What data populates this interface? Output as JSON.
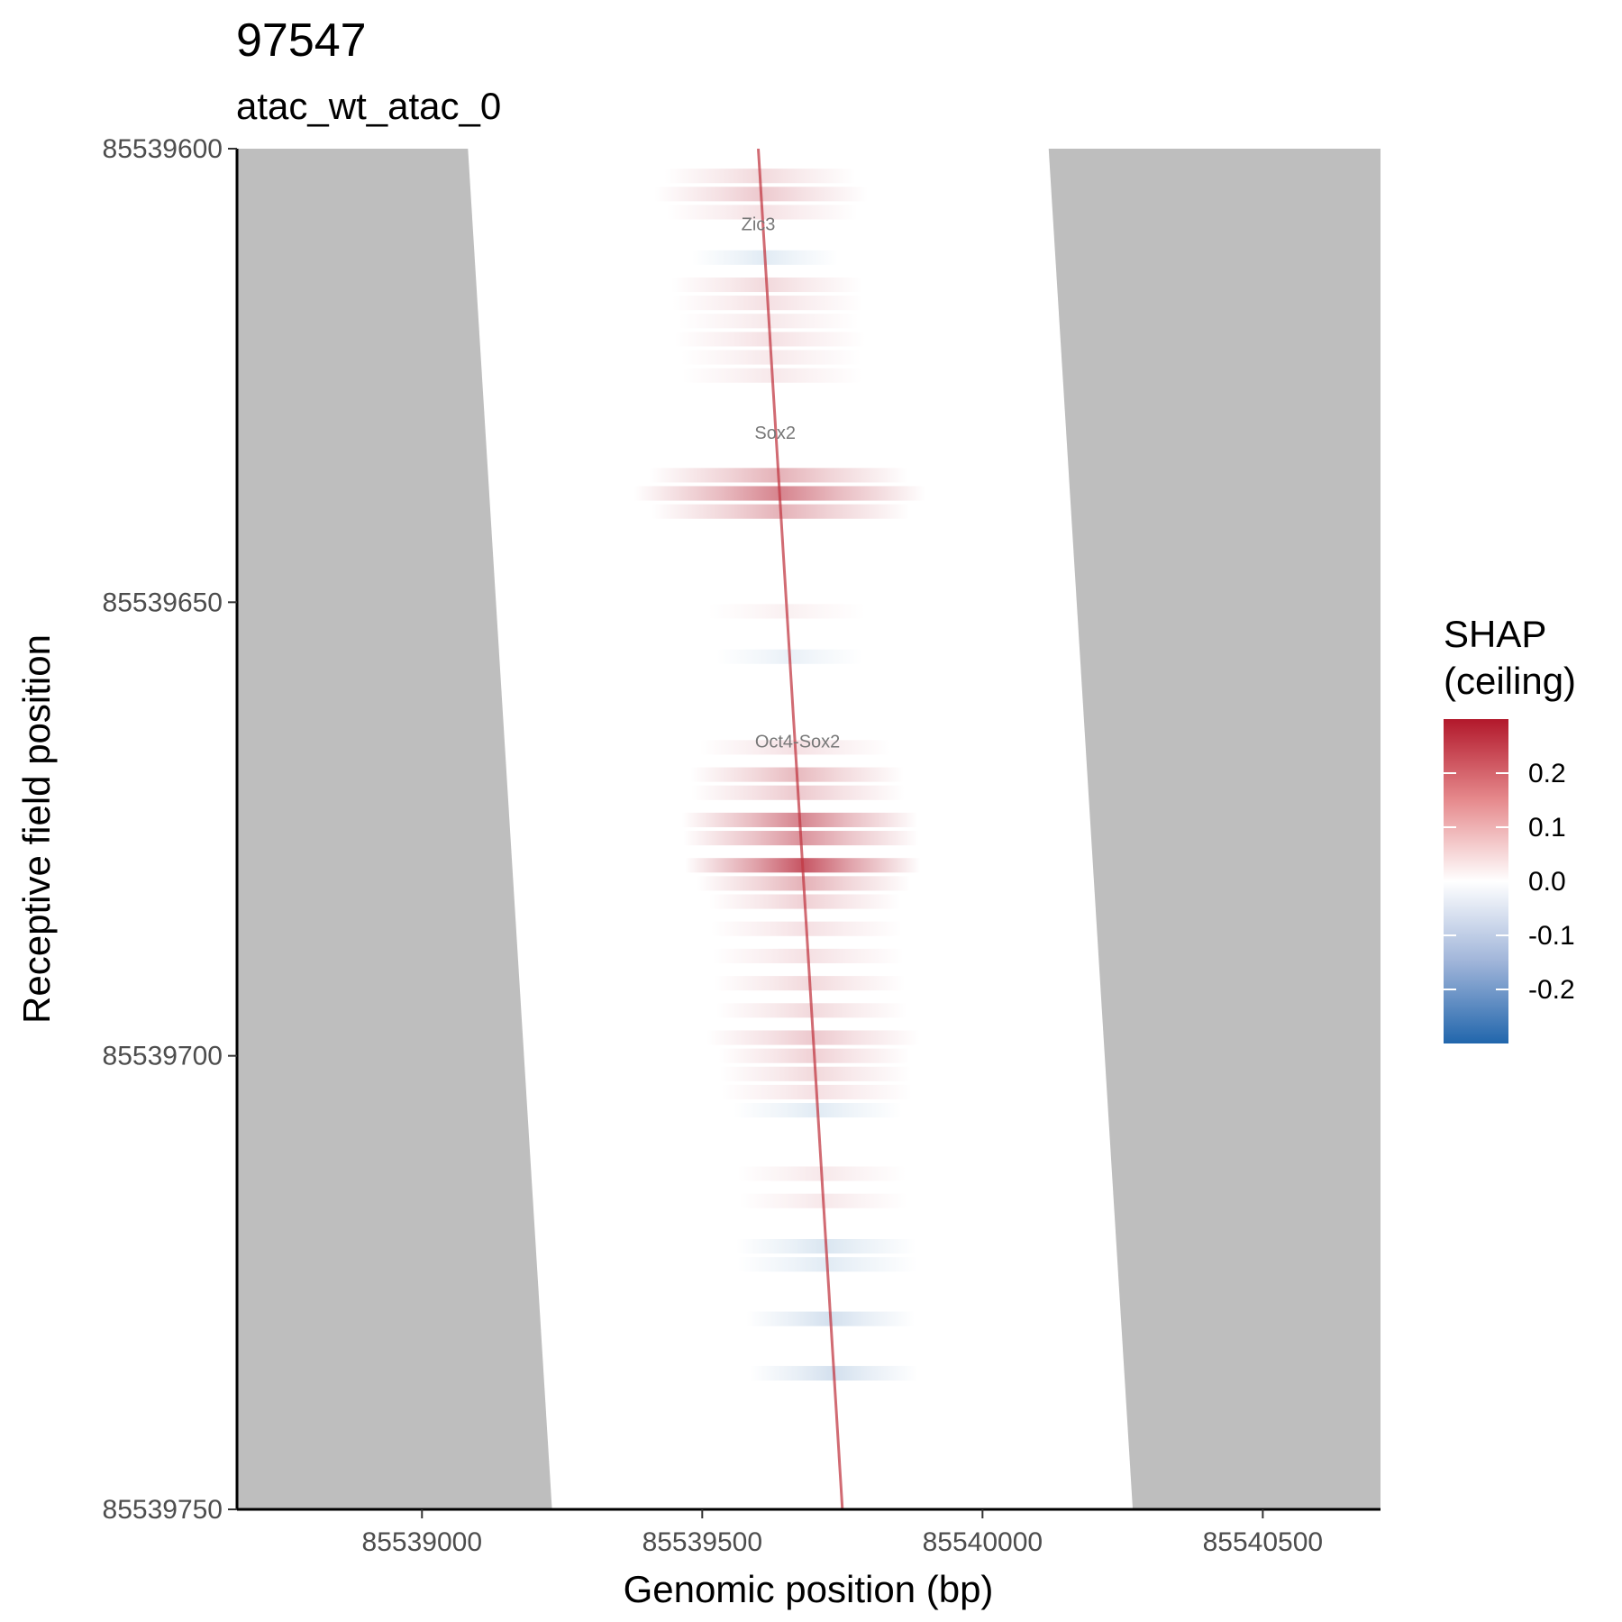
{
  "chart_data": {
    "type": "heatmap",
    "title": "97547",
    "subtitle": "atac_wt_atac_0",
    "xlabel": "Genomic position (bp)",
    "ylabel": "Receptive field position",
    "xlim": [
      85538670,
      85540710
    ],
    "ylim": [
      85539600,
      85539750
    ],
    "y_reversed": true,
    "x_ticks": [
      85539000,
      85539500,
      85540000,
      85540500
    ],
    "x_tick_labels": [
      "85539000",
      "85539500",
      "85540000",
      "85540500"
    ],
    "y_ticks": [
      85539600,
      85539650,
      85539700,
      85539750
    ],
    "y_tick_labels": [
      "85539600",
      "85539650",
      "85539700",
      "85539750"
    ],
    "background_fill": "#bebebe",
    "receptive_field_window": {
      "top": {
        "y": 85539600,
        "x_start": 85539082,
        "x_end": 85540118
      },
      "bottom": {
        "y": 85539750,
        "x_start": 85539232,
        "x_end": 85540268
      }
    },
    "diagonal_center": {
      "top": {
        "y": 85539600,
        "x": 85539600
      },
      "bottom": {
        "y": 85539750,
        "x": 85539750
      }
    },
    "bands": [
      {
        "y": 85539603,
        "value": 0.05,
        "halfwidth": 170
      },
      {
        "y": 85539605,
        "value": 0.07,
        "halfwidth": 190
      },
      {
        "y": 85539607,
        "value": 0.04,
        "halfwidth": 170
      },
      {
        "y": 85539612,
        "value": -0.04,
        "halfwidth": 130
      },
      {
        "y": 85539615,
        "value": 0.05,
        "halfwidth": 170
      },
      {
        "y": 85539617,
        "value": 0.04,
        "halfwidth": 170
      },
      {
        "y": 85539619,
        "value": 0.03,
        "halfwidth": 160
      },
      {
        "y": 85539621,
        "value": 0.04,
        "halfwidth": 170
      },
      {
        "y": 85539623,
        "value": 0.03,
        "halfwidth": 160
      },
      {
        "y": 85539625,
        "value": 0.03,
        "halfwidth": 160
      },
      {
        "y": 85539636,
        "value": 0.1,
        "halfwidth": 230
      },
      {
        "y": 85539638,
        "value": 0.16,
        "halfwidth": 260
      },
      {
        "y": 85539640,
        "value": 0.1,
        "halfwidth": 230
      },
      {
        "y": 85539651,
        "value": 0.02,
        "halfwidth": 140
      },
      {
        "y": 85539656,
        "value": -0.03,
        "halfwidth": 130
      },
      {
        "y": 85539666,
        "value": 0.04,
        "halfwidth": 170
      },
      {
        "y": 85539669,
        "value": 0.09,
        "halfwidth": 190
      },
      {
        "y": 85539671,
        "value": 0.07,
        "halfwidth": 190
      },
      {
        "y": 85539674,
        "value": 0.16,
        "halfwidth": 210
      },
      {
        "y": 85539676,
        "value": 0.14,
        "halfwidth": 210
      },
      {
        "y": 85539679,
        "value": 0.22,
        "halfwidth": 210
      },
      {
        "y": 85539681,
        "value": 0.1,
        "halfwidth": 190
      },
      {
        "y": 85539683,
        "value": 0.06,
        "halfwidth": 170
      },
      {
        "y": 85539686,
        "value": 0.04,
        "halfwidth": 170
      },
      {
        "y": 85539689,
        "value": 0.04,
        "halfwidth": 170
      },
      {
        "y": 85539692,
        "value": 0.05,
        "halfwidth": 170
      },
      {
        "y": 85539695,
        "value": 0.05,
        "halfwidth": 170
      },
      {
        "y": 85539698,
        "value": 0.07,
        "halfwidth": 190
      },
      {
        "y": 85539700,
        "value": 0.06,
        "halfwidth": 170
      },
      {
        "y": 85539702,
        "value": 0.05,
        "halfwidth": 170
      },
      {
        "y": 85539704,
        "value": 0.04,
        "halfwidth": 170
      },
      {
        "y": 85539706,
        "value": -0.04,
        "halfwidth": 150
      },
      {
        "y": 85539713,
        "value": 0.03,
        "halfwidth": 150
      },
      {
        "y": 85539716,
        "value": 0.03,
        "halfwidth": 150
      },
      {
        "y": 85539721,
        "value": -0.05,
        "halfwidth": 160
      },
      {
        "y": 85539723,
        "value": -0.04,
        "halfwidth": 160
      },
      {
        "y": 85539729,
        "value": -0.06,
        "halfwidth": 150
      },
      {
        "y": 85539735,
        "value": -0.06,
        "halfwidth": 150
      }
    ],
    "motif_annotations": [
      {
        "label": "Zic3",
        "x": 85539600,
        "y": 85539609
      },
      {
        "label": "Sox2",
        "x": 85539630,
        "y": 85539632
      },
      {
        "label": "Oct4-Sox2",
        "x": 85539670,
        "y": 85539666
      }
    ],
    "legend": {
      "title_lines": [
        "SHAP",
        "(ceiling)"
      ],
      "placement": "right",
      "min": -0.3,
      "max": 0.3,
      "ticks": [
        0.2,
        0.1,
        0.0,
        -0.1,
        -0.2
      ],
      "tick_labels": [
        "0.2",
        "0.1",
        "0.0",
        "-0.1",
        "-0.2"
      ],
      "colors": {
        "low": "#2166ac",
        "mid": "#ffffff",
        "high": "#b2182b"
      }
    }
  }
}
